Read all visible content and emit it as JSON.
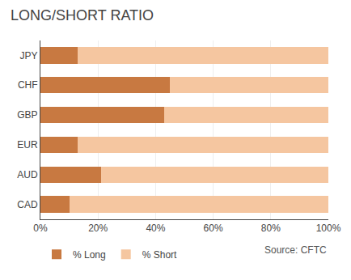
{
  "chart_data": {
    "type": "bar",
    "orientation": "horizontal",
    "stacked": true,
    "title": "LONG/SHORT RATIO",
    "categories": [
      "CAD",
      "AUD",
      "EUR",
      "GBP",
      "CHF",
      "JPY"
    ],
    "series": [
      {
        "name": "% Long",
        "color": "#C87941",
        "values": [
          10,
          21,
          13,
          43,
          45,
          13
        ]
      },
      {
        "name": "% Short",
        "color": "#F5C6A0",
        "values": [
          90,
          79,
          87,
          57,
          55,
          87
        ]
      }
    ],
    "xlim": [
      0,
      100
    ],
    "xticks": [
      {
        "value": 0,
        "label": "0%"
      },
      {
        "value": 20,
        "label": "20%"
      },
      {
        "value": 40,
        "label": "40%"
      },
      {
        "value": 60,
        "label": "60%"
      },
      {
        "value": 80,
        "label": "80%"
      },
      {
        "value": 100,
        "label": "100%"
      }
    ],
    "grid": true,
    "legend": "lower left",
    "annotations": [
      "Source: CFTC"
    ]
  }
}
